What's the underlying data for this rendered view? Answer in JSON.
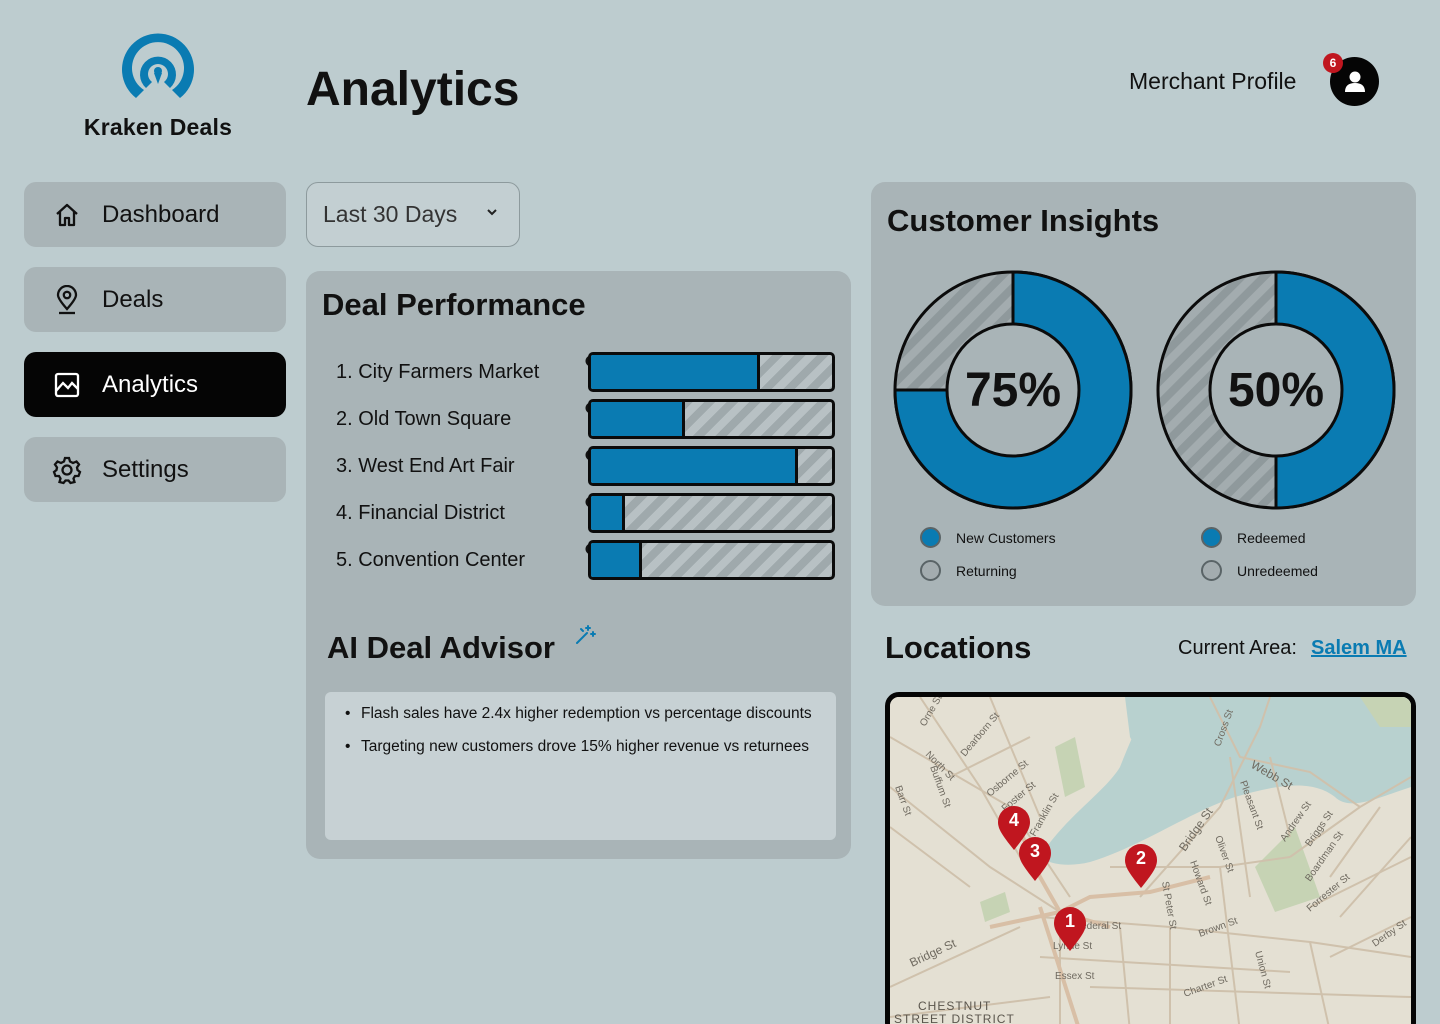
{
  "brand": {
    "name": "Kraken Deals"
  },
  "header": {
    "title": "Analytics",
    "profile_label": "Merchant Profile",
    "notification_count": "6"
  },
  "sidebar": {
    "items": [
      {
        "label": "Dashboard",
        "icon": "home-icon",
        "active": false
      },
      {
        "label": "Deals",
        "icon": "location-pin-icon",
        "active": false
      },
      {
        "label": "Analytics",
        "icon": "chart-image-icon",
        "active": true
      },
      {
        "label": "Settings",
        "icon": "gear-icon",
        "active": false
      }
    ]
  },
  "filters": {
    "date_range": "Last 30 Days"
  },
  "deal_performance": {
    "title": "Deal Performance",
    "deals": [
      {
        "label": "1. City Farmers Market",
        "value": 0.7
      },
      {
        "label": "2. Old Town Square",
        "value": 0.39
      },
      {
        "label": "3. West End Art Fair",
        "value": 0.86
      },
      {
        "label": "4. Financial District",
        "value": 0.14
      },
      {
        "label": "5. Convention Center",
        "value": 0.21
      }
    ]
  },
  "ai_advisor": {
    "title": "AI Deal Advisor",
    "tips": [
      "Flash sales have 2.4x higher redemption vs percentage discounts",
      "Targeting new customers drove 15% higher revenue vs returnees"
    ]
  },
  "customer_insights": {
    "title": "Customer Insights",
    "donuts": [
      {
        "value_label": "75%",
        "value": 75,
        "legend": [
          "New Customers",
          "Returning"
        ]
      },
      {
        "value_label": "50%",
        "value": 50,
        "legend": [
          "Redeemed",
          "Unredeemed"
        ]
      }
    ]
  },
  "locations": {
    "title": "Locations",
    "area_label": "Current Area:",
    "area_value": "Salem MA",
    "pins": [
      "1",
      "2",
      "3",
      "4"
    ],
    "map_labels": {
      "district_1": "CHESTNUT",
      "district_2": "STREET DISTRICT",
      "streets": [
        "North St",
        "Dearborn St",
        "Osborne St",
        "Foster St",
        "Franklin St",
        "Webb St",
        "Bridge St",
        "Pleasant St",
        "Andrew St",
        "Briggs St",
        "Boardman St",
        "Forrester St",
        "Essex St",
        "Derby St",
        "Oliver St",
        "Howard St",
        "St Peter St",
        "Brown St",
        "Union St",
        "Charter St",
        "Lynde St",
        "Federal St",
        "Buffum St",
        "Barr St",
        "Cross St",
        "Orne St"
      ]
    }
  },
  "colors": {
    "accent": "#0a7bb2",
    "background": "#bdcccf",
    "panel": "#a9b4b7",
    "active_nav": "#050505",
    "pin": "#c0161f"
  }
}
